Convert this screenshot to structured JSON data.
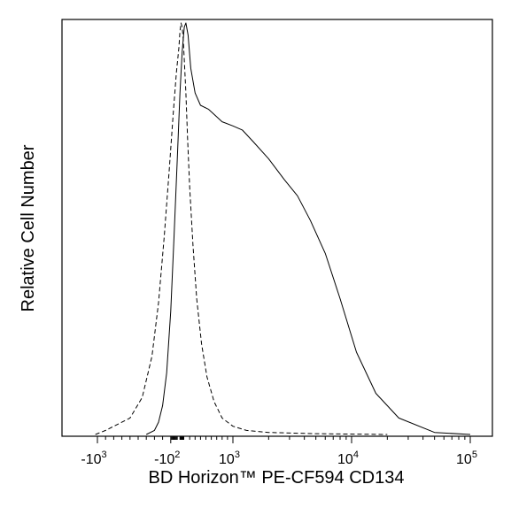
{
  "chart_data": {
    "type": "line",
    "title": "",
    "xlabel": "BD Horizon™ PE-CF594 CD134",
    "ylabel": "Relative Cell Number",
    "x_scale": "biexponential",
    "xlim": [
      -1500,
      150000
    ],
    "ylim": [
      0,
      1.0
    ],
    "grid": false,
    "legend": "none",
    "x_ticks": [
      {
        "value": -1000,
        "base": "-10",
        "exp": "3"
      },
      {
        "value": -100,
        "base": "-10",
        "exp": "2"
      },
      {
        "value": 1000,
        "base": "10",
        "exp": "3"
      },
      {
        "value": 10000,
        "base": "10",
        "exp": "4"
      },
      {
        "value": 100000,
        "base": "10",
        "exp": "5"
      }
    ],
    "series": [
      {
        "style": "dashed",
        "x": [
          -1300,
          -900,
          -600,
          -450,
          -330,
          -250,
          -180,
          -120,
          -70,
          -30,
          0,
          20,
          40,
          60,
          80,
          100,
          130,
          160,
          200,
          260,
          330,
          420,
          520,
          650,
          800,
          1000,
          1300,
          2000,
          5000,
          20000
        ],
        "y": [
          0.0,
          0.01,
          0.04,
          0.09,
          0.19,
          0.32,
          0.48,
          0.64,
          0.78,
          0.88,
          0.94,
          0.98,
          1.0,
          0.99,
          0.96,
          0.91,
          0.83,
          0.72,
          0.6,
          0.46,
          0.33,
          0.22,
          0.14,
          0.08,
          0.04,
          0.02,
          0.01,
          0.005,
          0.002,
          0.0
        ]
      },
      {
        "style": "solid",
        "x": [
          -400,
          -300,
          -250,
          -200,
          -150,
          -100,
          -60,
          -20,
          20,
          60,
          100,
          130,
          170,
          220,
          300,
          400,
          550,
          800,
          1000,
          1200,
          1500,
          2000,
          2700,
          3500,
          4500,
          6000,
          8000,
          11000,
          16000,
          25000,
          50000,
          100000
        ],
        "y": [
          0.0,
          0.01,
          0.03,
          0.07,
          0.15,
          0.3,
          0.48,
          0.67,
          0.83,
          0.93,
          0.99,
          1.0,
          0.97,
          0.89,
          0.83,
          0.8,
          0.79,
          0.76,
          0.75,
          0.74,
          0.71,
          0.67,
          0.62,
          0.58,
          0.52,
          0.44,
          0.33,
          0.2,
          0.1,
          0.04,
          0.005,
          0.0
        ]
      }
    ]
  }
}
